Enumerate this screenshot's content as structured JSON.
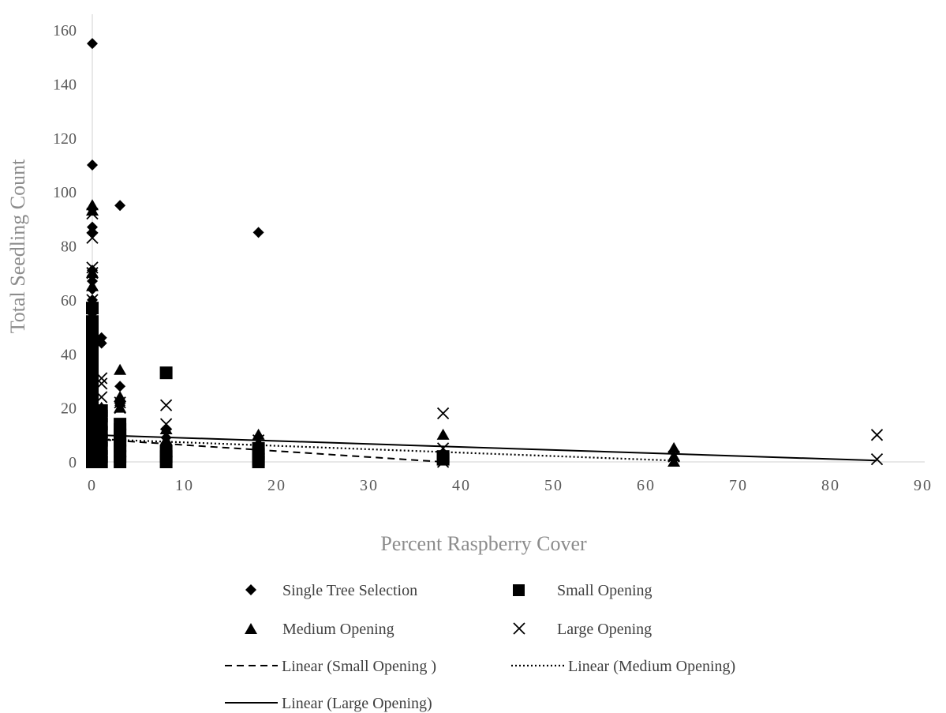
{
  "chart_data": {
    "type": "scatter",
    "title": "",
    "xlabel": "Percent Raspberry Cover",
    "ylabel": "Total Seedling Count",
    "xlim": [
      0,
      90
    ],
    "ylim": [
      0,
      160
    ],
    "x_ticks": [
      "0",
      "10",
      "20",
      "30",
      "40",
      "50",
      "60",
      "70",
      "80",
      "90"
    ],
    "y_ticks": [
      "0",
      "20",
      "40",
      "60",
      "80",
      "100",
      "120",
      "140",
      "160"
    ],
    "grid": false,
    "legend_position": "bottom",
    "series": [
      {
        "name": "Single Tree Selection",
        "marker": "diamond",
        "color": "#000000",
        "points": [
          [
            0,
            155
          ],
          [
            0,
            110
          ],
          [
            0,
            87
          ],
          [
            0,
            85
          ],
          [
            0,
            71
          ],
          [
            0,
            69
          ],
          [
            0,
            67
          ],
          [
            0,
            64
          ],
          [
            0,
            60
          ],
          [
            0,
            55
          ],
          [
            0,
            51
          ],
          [
            0,
            47
          ],
          [
            0,
            44
          ],
          [
            0,
            40
          ],
          [
            0,
            36
          ],
          [
            0,
            32
          ],
          [
            0,
            28
          ],
          [
            0,
            24
          ],
          [
            0,
            20
          ],
          [
            0,
            16
          ],
          [
            0,
            12
          ],
          [
            0,
            8
          ],
          [
            0,
            4
          ],
          [
            0,
            0
          ],
          [
            1,
            46
          ],
          [
            1,
            44
          ],
          [
            1,
            20
          ],
          [
            1,
            15
          ],
          [
            1,
            10
          ],
          [
            1,
            5
          ],
          [
            3,
            95
          ],
          [
            3,
            28
          ],
          [
            3,
            22
          ],
          [
            3,
            21
          ],
          [
            3,
            10
          ],
          [
            3,
            5
          ],
          [
            8,
            12
          ],
          [
            8,
            9
          ],
          [
            8,
            7
          ],
          [
            18,
            85
          ],
          [
            18,
            5
          ]
        ]
      },
      {
        "name": "Small Opening",
        "marker": "square",
        "color": "#000000",
        "points": [
          [
            0,
            57
          ],
          [
            0,
            52
          ],
          [
            0,
            48
          ],
          [
            0,
            45
          ],
          [
            0,
            41
          ],
          [
            0,
            37
          ],
          [
            0,
            33
          ],
          [
            0,
            30
          ],
          [
            0,
            27
          ],
          [
            0,
            24
          ],
          [
            0,
            21
          ],
          [
            0,
            18
          ],
          [
            0,
            15
          ],
          [
            0,
            12
          ],
          [
            0,
            9
          ],
          [
            0,
            6
          ],
          [
            0,
            3
          ],
          [
            0,
            0
          ],
          [
            1,
            19
          ],
          [
            1,
            17
          ],
          [
            1,
            14
          ],
          [
            1,
            11
          ],
          [
            1,
            8
          ],
          [
            1,
            5
          ],
          [
            1,
            2
          ],
          [
            1,
            0
          ],
          [
            3,
            14
          ],
          [
            3,
            12
          ],
          [
            3,
            10
          ],
          [
            3,
            8
          ],
          [
            3,
            6
          ],
          [
            3,
            4
          ],
          [
            3,
            2
          ],
          [
            3,
            0
          ],
          [
            8,
            33
          ],
          [
            8,
            4
          ],
          [
            8,
            2
          ],
          [
            8,
            0
          ],
          [
            18,
            5
          ],
          [
            18,
            3
          ],
          [
            18,
            1
          ],
          [
            18,
            0
          ],
          [
            38,
            2
          ],
          [
            38,
            1
          ]
        ]
      },
      {
        "name": "Medium Opening",
        "marker": "triangle",
        "color": "#000000",
        "points": [
          [
            0,
            95
          ],
          [
            0,
            93
          ],
          [
            0,
            70
          ],
          [
            0,
            65
          ],
          [
            0,
            50
          ],
          [
            0,
            42
          ],
          [
            0,
            35
          ],
          [
            0,
            25
          ],
          [
            0,
            20
          ],
          [
            0,
            15
          ],
          [
            0,
            10
          ],
          [
            0,
            5
          ],
          [
            0,
            0
          ],
          [
            1,
            20
          ],
          [
            1,
            12
          ],
          [
            1,
            6
          ],
          [
            3,
            34
          ],
          [
            3,
            24
          ],
          [
            3,
            20
          ],
          [
            3,
            10
          ],
          [
            3,
            5
          ],
          [
            8,
            12
          ],
          [
            8,
            8
          ],
          [
            18,
            10
          ],
          [
            18,
            7
          ],
          [
            18,
            4
          ],
          [
            38,
            10
          ],
          [
            38,
            3
          ],
          [
            63,
            5
          ],
          [
            63,
            2
          ],
          [
            63,
            0
          ]
        ]
      },
      {
        "name": "Large Opening",
        "marker": "x",
        "color": "#000000",
        "points": [
          [
            0,
            92
          ],
          [
            0,
            83
          ],
          [
            0,
            72
          ],
          [
            0,
            70
          ],
          [
            0,
            60
          ],
          [
            0,
            45
          ],
          [
            0,
            38
          ],
          [
            0,
            30
          ],
          [
            0,
            22
          ],
          [
            0,
            18
          ],
          [
            0,
            12
          ],
          [
            0,
            8
          ],
          [
            0,
            4
          ],
          [
            1,
            31
          ],
          [
            1,
            29
          ],
          [
            1,
            24
          ],
          [
            1,
            16
          ],
          [
            1,
            10
          ],
          [
            3,
            22
          ],
          [
            3,
            20
          ],
          [
            3,
            8
          ],
          [
            8,
            21
          ],
          [
            8,
            14
          ],
          [
            18,
            8
          ],
          [
            38,
            18
          ],
          [
            38,
            5
          ],
          [
            38,
            0
          ],
          [
            63,
            2
          ],
          [
            85,
            10
          ],
          [
            85,
            1
          ]
        ]
      }
    ],
    "trendlines": [
      {
        "name": "Linear (Small Opening )",
        "style": "dashed",
        "x": [
          0,
          38
        ],
        "y": [
          8.5,
          0
        ]
      },
      {
        "name": "Linear (Medium Opening)",
        "style": "dotted",
        "x": [
          0,
          63
        ],
        "y": [
          8.5,
          0.5
        ]
      },
      {
        "name": "Linear (Large Opening)",
        "style": "solid",
        "x": [
          0,
          85
        ],
        "y": [
          10,
          0.5
        ]
      }
    ]
  }
}
